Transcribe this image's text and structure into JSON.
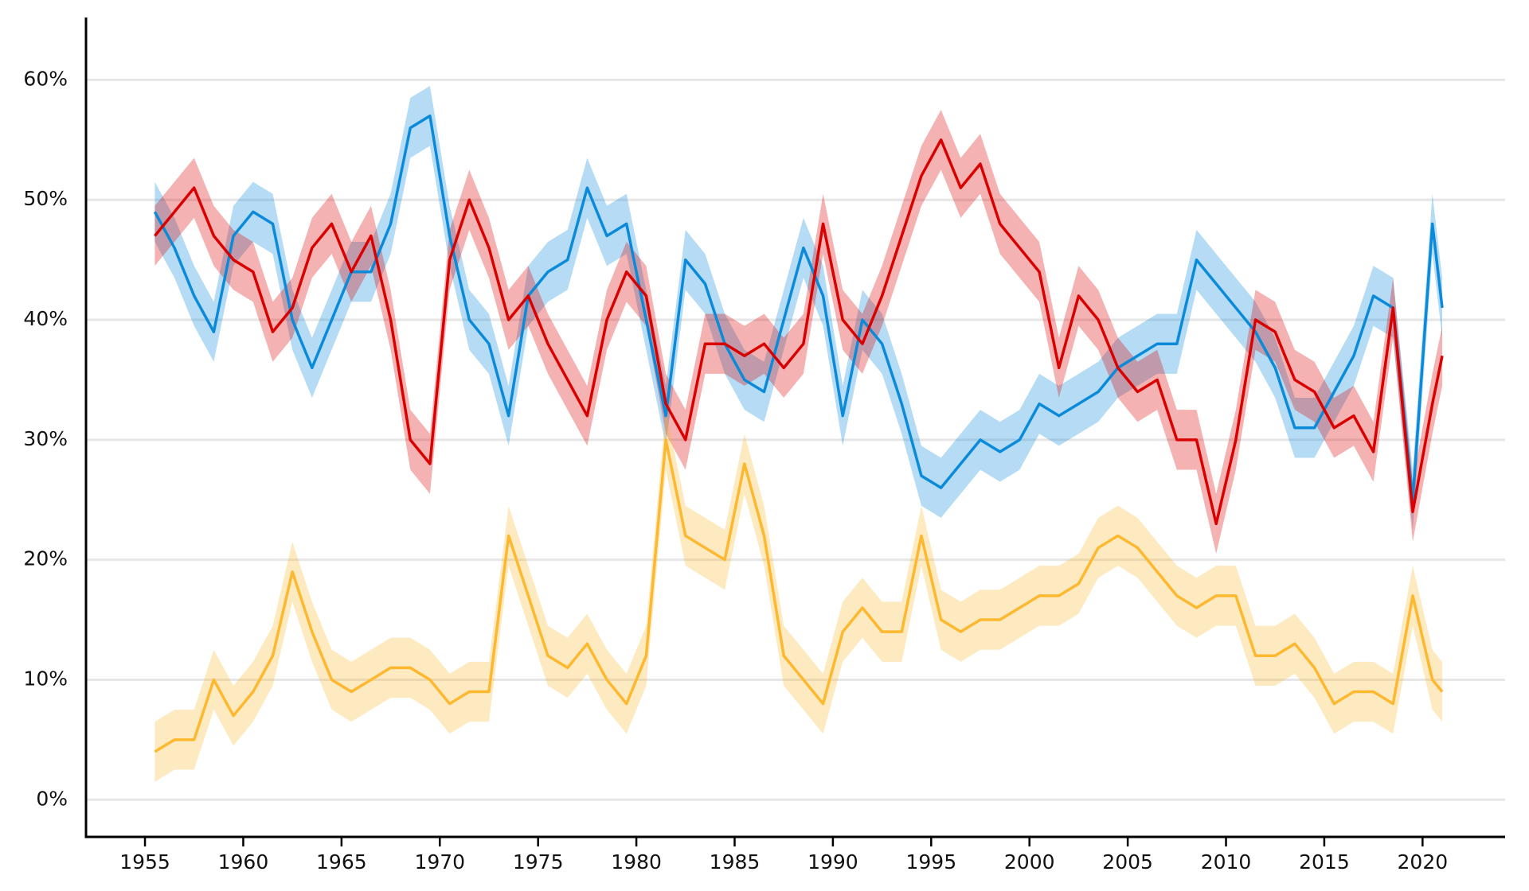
{
  "chart_data": {
    "type": "line",
    "x": [
      1955.5,
      1956.5,
      1957.5,
      1958.5,
      1959.5,
      1960.5,
      1961.5,
      1962.5,
      1963.5,
      1964.5,
      1965.5,
      1966.5,
      1967.5,
      1968.5,
      1969.5,
      1970.5,
      1971.5,
      1972.5,
      1973.5,
      1974.5,
      1975.5,
      1976.5,
      1977.5,
      1978.5,
      1979.5,
      1980.5,
      1981.5,
      1982.5,
      1983.5,
      1984.5,
      1985.5,
      1986.5,
      1987.5,
      1988.5,
      1989.5,
      1990.5,
      1991.5,
      1992.5,
      1993.5,
      1994.5,
      1995.5,
      1996.5,
      1997.5,
      1998.5,
      1999.5,
      2000.5,
      2001.5,
      2002.5,
      2003.5,
      2004.5,
      2005.5,
      2006.5,
      2007.5,
      2008.5,
      2009.5,
      2010.5,
      2011.5,
      2012.5,
      2013.5,
      2014.5,
      2015.5,
      2016.5,
      2017.5,
      2018.5,
      2019.5,
      2020.5,
      2021
    ],
    "series": [
      {
        "color": "#0b8ad9",
        "band": 2.5,
        "values": [
          49,
          46,
          42,
          39,
          47,
          49,
          48,
          40,
          36,
          40,
          44,
          44,
          48,
          56,
          57,
          47,
          40,
          38,
          32,
          42,
          44,
          45,
          51,
          47,
          48,
          40,
          32,
          45,
          43,
          38,
          35,
          34,
          40,
          46,
          42,
          32,
          40,
          38,
          33,
          27,
          26,
          28,
          30,
          29,
          30,
          33,
          32,
          33,
          34,
          36,
          37,
          38,
          38,
          45,
          43,
          41,
          39,
          36,
          31,
          31,
          34,
          37,
          42,
          41,
          25,
          48,
          41
        ]
      },
      {
        "color": "#d90000",
        "band": 2.5,
        "values": [
          47,
          49,
          51,
          47,
          45,
          44,
          39,
          41,
          46,
          48,
          44,
          47,
          40,
          30,
          28,
          45,
          50,
          46,
          40,
          42,
          38,
          35,
          32,
          40,
          44,
          42,
          33,
          30,
          38,
          38,
          37,
          38,
          36,
          38,
          48,
          40,
          38,
          42,
          47,
          52,
          55,
          51,
          53,
          48,
          46,
          44,
          36,
          42,
          40,
          36,
          34,
          35,
          30,
          30,
          23,
          30,
          40,
          39,
          35,
          34,
          31,
          32,
          29,
          41,
          24,
          33,
          37
        ]
      },
      {
        "color": "#fdb82f",
        "band": 2.5,
        "values": [
          4,
          5,
          5,
          10,
          7,
          9,
          12,
          19,
          14,
          10,
          9,
          10,
          11,
          11,
          10,
          8,
          9,
          9,
          22,
          17,
          12,
          11,
          13,
          10,
          8,
          12,
          30,
          22,
          21,
          20,
          28,
          22,
          12,
          10,
          8,
          14,
          16,
          14,
          14,
          22,
          15,
          14,
          15,
          15,
          16,
          17,
          17,
          18,
          21,
          22,
          21,
          19,
          17,
          16,
          17,
          17,
          12,
          12,
          13,
          11,
          8,
          9,
          9,
          8,
          17,
          10,
          9
        ]
      }
    ],
    "xlim": [
      1952,
      2024.2
    ],
    "xticks": [
      1955,
      1960,
      1965,
      1970,
      1975,
      1980,
      1985,
      1990,
      1995,
      2000,
      2005,
      2010,
      2015,
      2020
    ],
    "ylim": [
      -3.1,
      65.2
    ],
    "yticks": [
      {
        "value": 0,
        "label": "0%"
      },
      {
        "value": 10,
        "label": "10%"
      },
      {
        "value": 20,
        "label": "20%"
      },
      {
        "value": 30,
        "label": "30%"
      },
      {
        "value": 40,
        "label": "40%"
      },
      {
        "value": 50,
        "label": "50%"
      },
      {
        "value": 60,
        "label": "60%"
      }
    ],
    "grid": true
  }
}
